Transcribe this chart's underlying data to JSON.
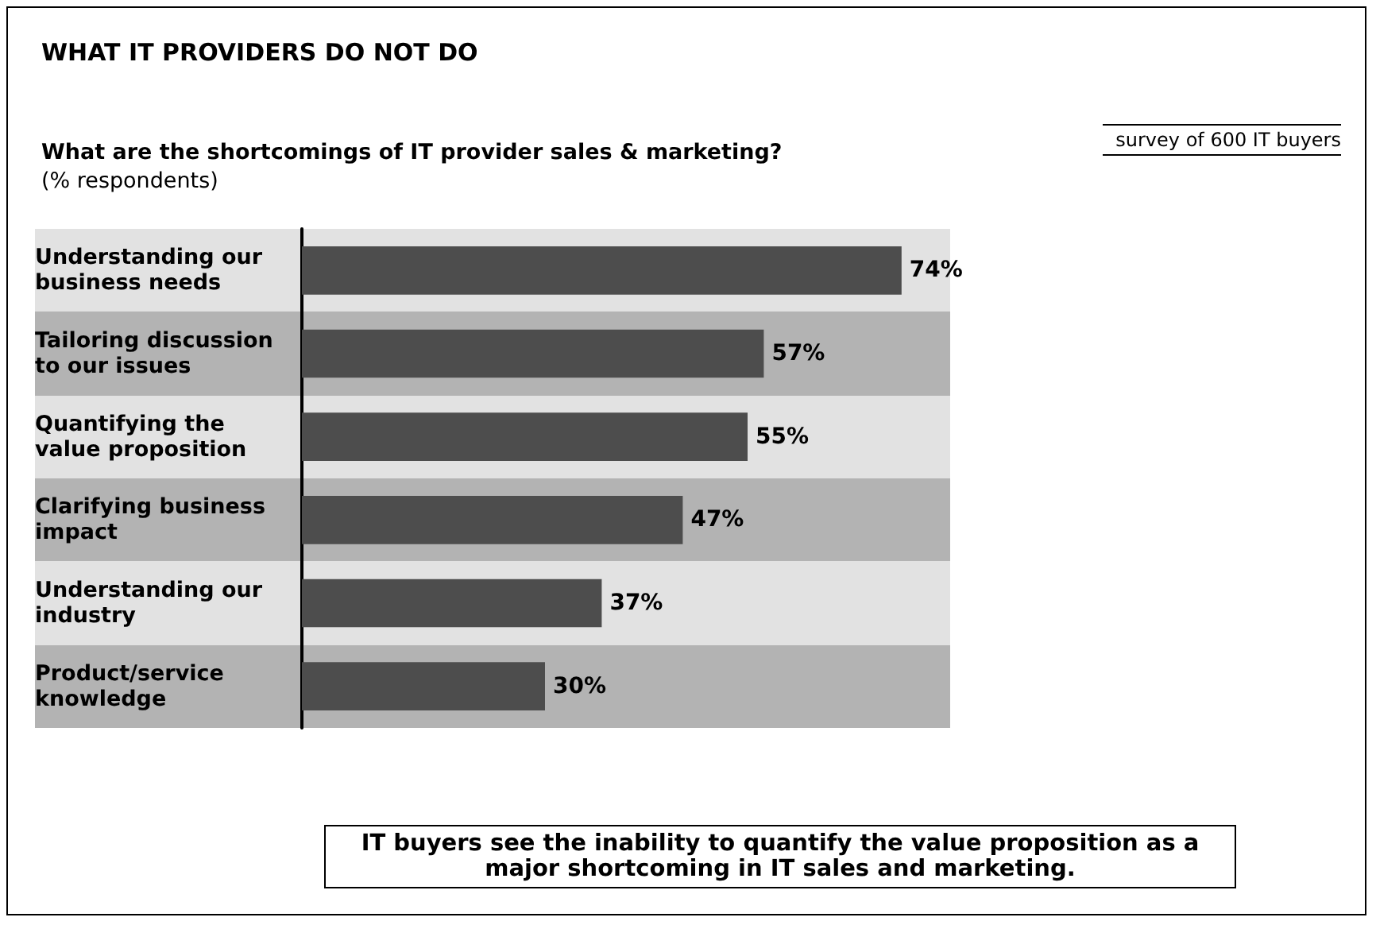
{
  "chart_data": {
    "type": "bar",
    "orientation": "horizontal",
    "title": "WHAT IT PROVIDERS DO NOT DO",
    "subtitle": "What are the shortcomings of IT provider sales & marketing?",
    "xlabel": "(% respondents)",
    "categories": [
      "Understanding our business needs",
      "Tailoring discussion to our issues",
      "Quantifying the value proposition",
      "Clarifying business impact",
      "Understanding our industry",
      "Product/service knowledge"
    ],
    "values": [
      74,
      57,
      55,
      47,
      37,
      30
    ],
    "value_labels": [
      "74%",
      "57%",
      "55%",
      "47%",
      "37%",
      "30%"
    ],
    "color": "#4d4d4d",
    "annotations": [
      "survey of 600 IT buyers",
      "IT buyers see the inability to quantify the value proposition as a major shortcoming in IT sales and marketing."
    ]
  }
}
